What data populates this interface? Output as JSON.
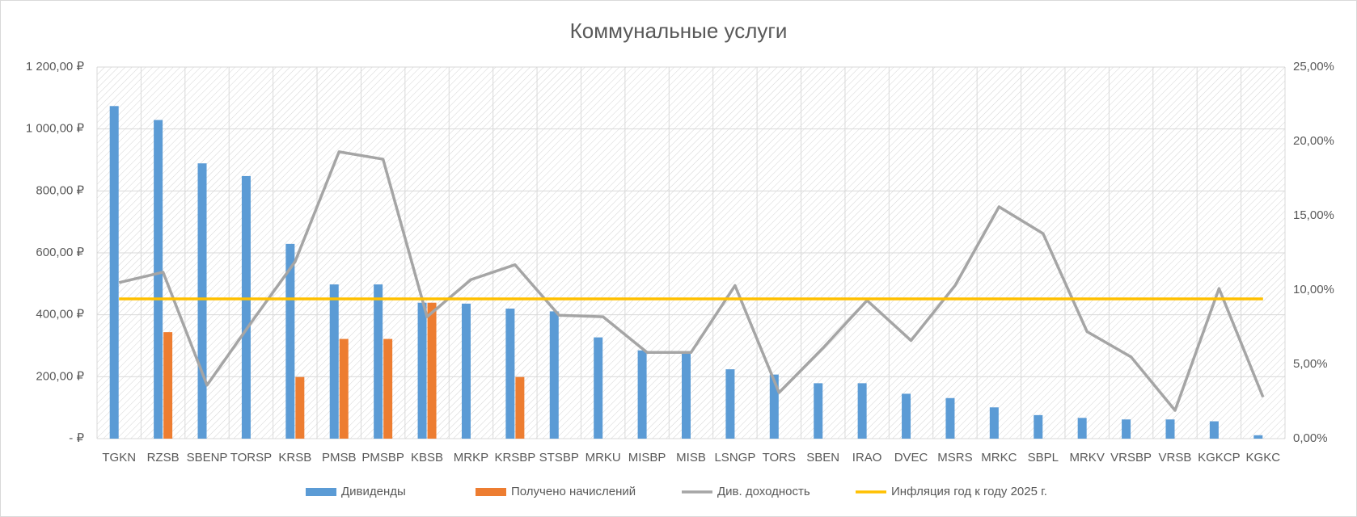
{
  "chart_data": {
    "type": "bar",
    "title": "Коммунальные услуги",
    "categories": [
      "TGKN",
      "RZSB",
      "SBENP",
      "TORSP",
      "KRSB",
      "PMSB",
      "PMSBP",
      "KBSB",
      "MRKP",
      "KRSBP",
      "STSBP",
      "MRKU",
      "MISBP",
      "MISB",
      "LSNGP",
      "TORS",
      "SBEN",
      "IRAO",
      "DVEC",
      "MSRS",
      "MRKC",
      "SBPL",
      "MRKV",
      "VRSBP",
      "VRSB",
      "KGKCP",
      "KGKC"
    ],
    "series": [
      {
        "name": "Дивиденды",
        "type": "bar",
        "color": "#5b9bd5",
        "values": [
          1074,
          1029,
          889,
          848,
          629,
          498,
          498,
          439,
          436,
          420,
          411,
          327,
          285,
          282,
          224,
          207,
          179,
          179,
          145,
          131,
          101,
          76,
          67,
          62,
          62,
          56,
          11
        ]
      },
      {
        "name": "Получено начислений",
        "type": "bar",
        "color": "#ed7d31",
        "values": [
          null,
          344,
          null,
          null,
          199,
          322,
          322,
          439,
          null,
          199,
          null,
          null,
          null,
          null,
          null,
          null,
          null,
          null,
          null,
          null,
          null,
          null,
          null,
          null,
          null,
          null,
          null
        ]
      },
      {
        "name": "Див. доходность",
        "type": "line",
        "axis": "y2",
        "color": "#a5a5a5",
        "values": [
          10.5,
          11.2,
          3.6,
          7.8,
          11.9,
          19.3,
          18.8,
          8.2,
          10.7,
          11.7,
          8.3,
          8.2,
          5.8,
          5.8,
          10.3,
          3.1,
          6.1,
          9.3,
          6.6,
          10.3,
          15.6,
          13.8,
          7.2,
          5.5,
          1.9,
          10.1,
          2.8
        ]
      },
      {
        "name": "Инфляция год к году 2025 г.",
        "type": "line",
        "axis": "y2",
        "color": "#ffc000",
        "values": [
          9.4,
          9.4,
          9.4,
          9.4,
          9.4,
          9.4,
          9.4,
          9.4,
          9.4,
          9.4,
          9.4,
          9.4,
          9.4,
          9.4,
          9.4,
          9.4,
          9.4,
          9.4,
          9.4,
          9.4,
          9.4,
          9.4,
          9.4,
          9.4,
          9.4,
          9.4,
          9.4
        ]
      }
    ],
    "ylim": [
      0,
      1200
    ],
    "yticks": [
      {
        "value": 0,
        "label": "-  ₽"
      },
      {
        "value": 200,
        "label": "200,00 ₽"
      },
      {
        "value": 400,
        "label": "400,00 ₽"
      },
      {
        "value": 600,
        "label": "600,00 ₽"
      },
      {
        "value": 800,
        "label": "800,00 ₽"
      },
      {
        "value": 1000,
        "label": "1 000,00 ₽"
      },
      {
        "value": 1200,
        "label": "1 200,00 ₽"
      }
    ],
    "y2lim": [
      0,
      25
    ],
    "y2ticks": [
      {
        "value": 0,
        "label": "0,00%"
      },
      {
        "value": 5,
        "label": "5,00%"
      },
      {
        "value": 10,
        "label": "10,00%"
      },
      {
        "value": 15,
        "label": "15,00%"
      },
      {
        "value": 20,
        "label": "20,00%"
      },
      {
        "value": 25,
        "label": "25,00%"
      }
    ],
    "grid": true,
    "legend": "bottom"
  }
}
